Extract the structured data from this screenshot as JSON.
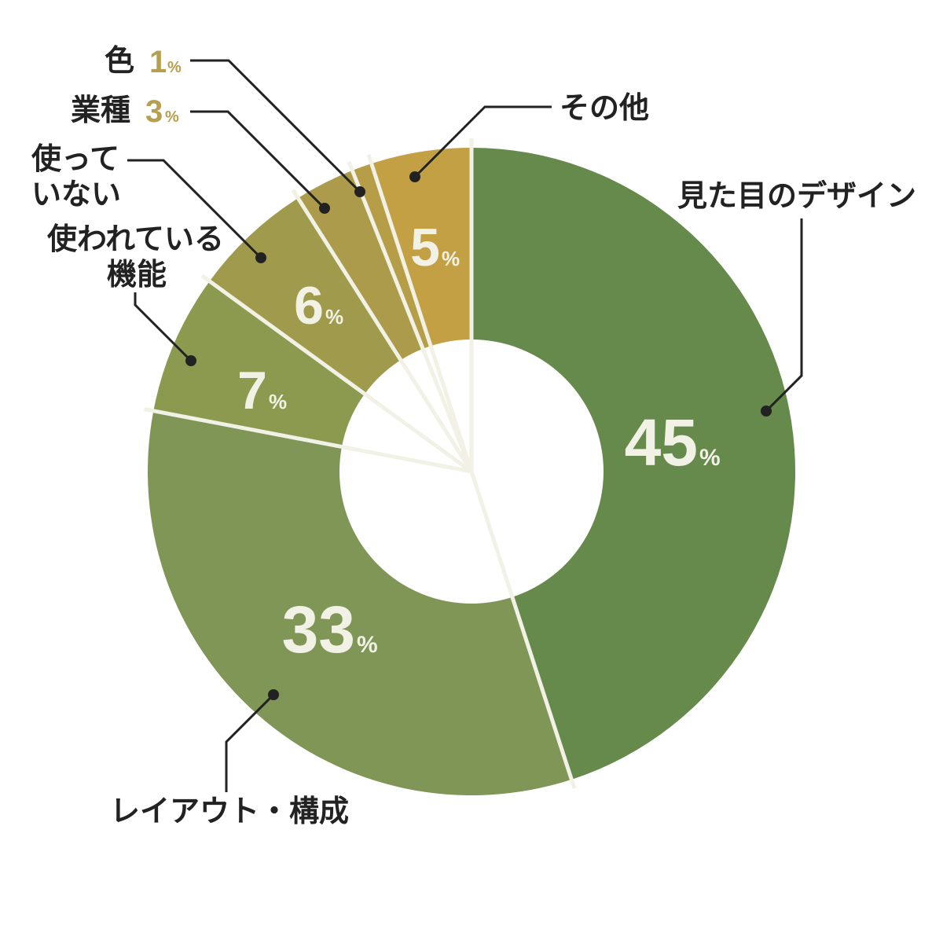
{
  "chart_data": {
    "type": "pie",
    "categories": [
      "見た目のデザイン",
      "レイアウト・構成",
      "使われている機能",
      "使っていない",
      "業種",
      "色",
      "その他"
    ],
    "values": [
      45,
      33,
      7,
      6,
      3,
      1,
      5
    ],
    "unit": "%",
    "colors": [
      "#658a4c",
      "#7f9657",
      "#8c9a50",
      "#a09b4c",
      "#ab9b4a",
      "#b69d47",
      "#c4a044"
    ],
    "separator_color": "#f1f1e6",
    "label_value_color": "#b4a04e",
    "labels": {
      "design": "見た目のデザイン",
      "layout": "レイアウト・構成",
      "features_line1": "使われている",
      "features_line2": "機能",
      "unused_line1": "使って",
      "unused_line2": "いない",
      "industry": "業種",
      "color": "色",
      "other": "その他"
    },
    "value_text": {
      "design": "45",
      "layout": "33",
      "features": "7",
      "unused": "6",
      "industry": "3",
      "color": "1",
      "other": "5",
      "percent": "%"
    },
    "legend": "none",
    "grid": false
  }
}
